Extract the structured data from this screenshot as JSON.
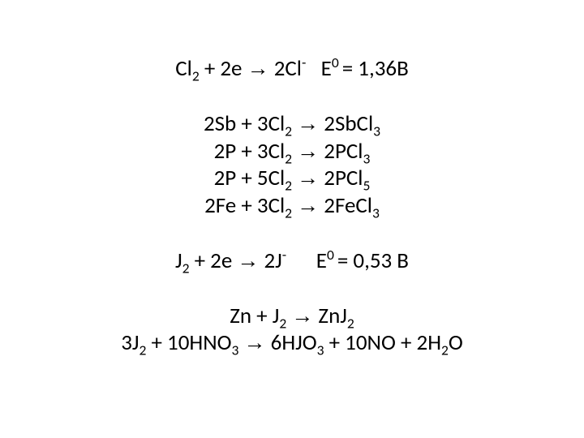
{
  "styling": {
    "background_color": "#ffffff",
    "text_color": "#000000",
    "font_family": "Calibri",
    "font_size_pt": 27,
    "line_height": 1.25,
    "slide_width": 720,
    "slide_height": 540,
    "padding_top": 68,
    "gap_height": 34,
    "arrow_glyph": "→"
  },
  "equations": [
    {
      "type": "potential",
      "html": "Cl<sub>2</sub> + 2e <span class='arrow'>→</span> 2Cl<sup>-</sup>&nbsp;&nbsp;&nbsp;E<sup>0 </sup>= 1,36В"
    },
    {
      "type": "gap"
    },
    {
      "type": "reaction",
      "html": "2Sb + 3Cl<sub>2</sub> <span class='arrow'>→</span> 2SbCl<sub>3</sub>"
    },
    {
      "type": "reaction",
      "html": "2P + 3Cl<sub>2</sub> <span class='arrow'>→</span> 2PCl<sub>3</sub>"
    },
    {
      "type": "reaction",
      "html": "2P + 5Cl<sub>2</sub> <span class='arrow'>→</span> 2PCl<sub>5</sub>"
    },
    {
      "type": "reaction",
      "html": "2Fe + 3Cl<sub>2</sub> <span class='arrow'>→</span> 2FeCl<sub>3</sub>"
    },
    {
      "type": "gap"
    },
    {
      "type": "potential",
      "html": "J<sub>2</sub> + 2e <span class='arrow'>→</span> 2J<sup>-</sup>&nbsp;&nbsp;&nbsp;&nbsp;&nbsp;&nbsp;E<sup>0 </sup>= 0,53 В"
    },
    {
      "type": "gap"
    },
    {
      "type": "reaction",
      "html": "Zn + J<sub>2</sub> <span class='arrow'>→</span>  ZnJ<sub>2</sub>"
    },
    {
      "type": "reaction",
      "html": "3J<sub>2</sub> + 10HNO<sub>3</sub> <span class='arrow'>→</span> 6HJO<sub>3</sub> + 10NO + 2H<sub>2</sub>O"
    }
  ]
}
